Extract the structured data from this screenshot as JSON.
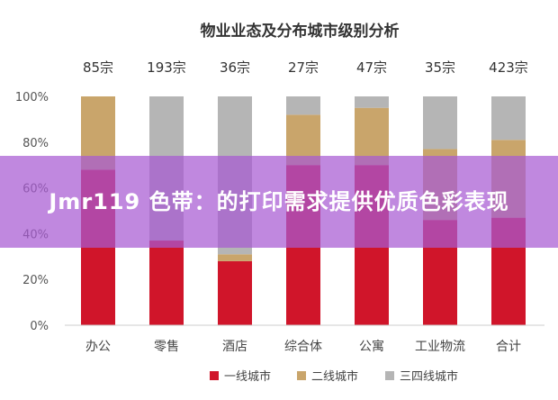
{
  "chart_data": {
    "type": "bar",
    "stacked": true,
    "title": "物业业态及分布城市级别分析",
    "categories": [
      "办公",
      "零售",
      "酒店",
      "综合体",
      "公寓",
      "工业物流",
      "合计"
    ],
    "counts": [
      "85宗",
      "193宗",
      "36宗",
      "27宗",
      "47宗",
      "35宗",
      "423宗"
    ],
    "series": [
      {
        "name": "一线城市",
        "color": "#d0152a",
        "values": [
          68,
          37,
          28,
          70,
          70,
          46,
          47
        ]
      },
      {
        "name": "二线城市",
        "color": "#c9a56b",
        "values": [
          32,
          0,
          3,
          22,
          25,
          31,
          34
        ]
      },
      {
        "name": "三四线城市",
        "color": "#b5b5b5",
        "values": [
          0,
          63,
          69,
          8,
          5,
          23,
          19
        ]
      }
    ],
    "yticks": [
      "0%",
      "20%",
      "40%",
      "60%",
      "80%",
      "100%"
    ],
    "ylim": [
      0,
      100
    ],
    "grid": false,
    "legend": "bottom"
  },
  "overlay": {
    "text": "Jmr119 色带：的打印需求提供优质色彩表现",
    "color": "#a85ad2"
  }
}
